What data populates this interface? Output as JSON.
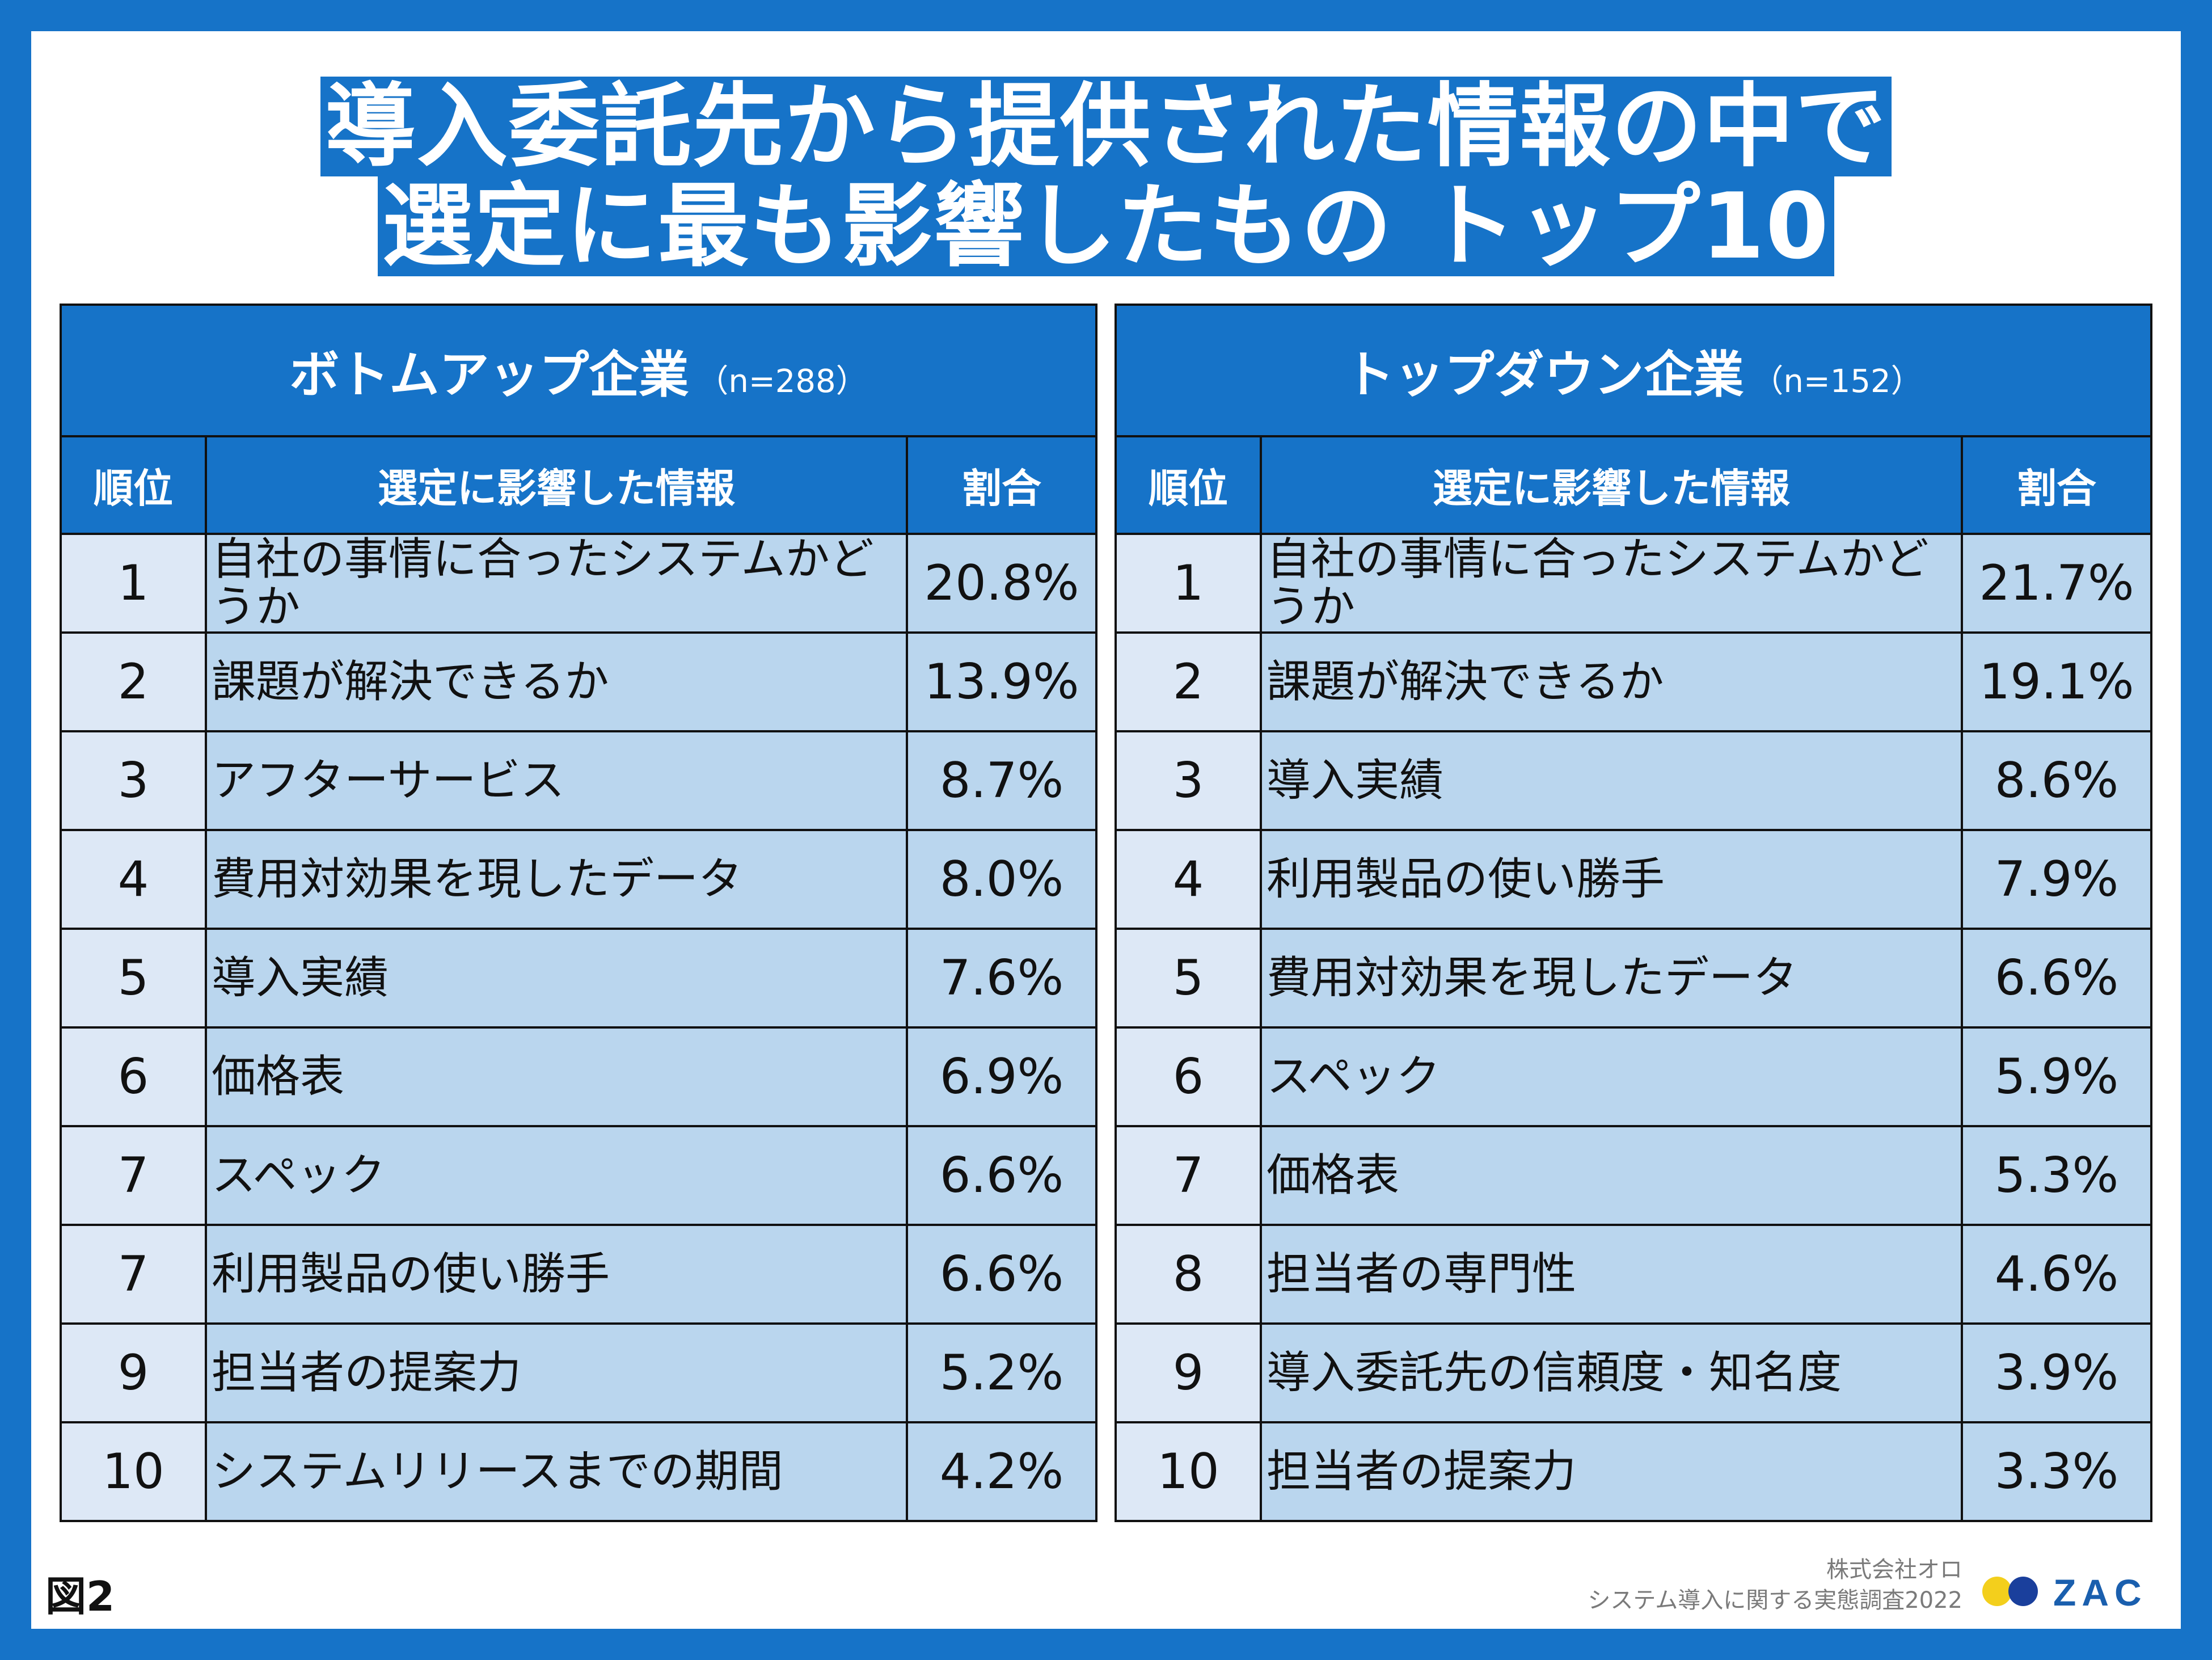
{
  "title": {
    "line1": "導入委託先から提供された情報の中で",
    "line2": "選定に最も影響したもの トップ10"
  },
  "colors": {
    "frame": "#1673c8",
    "header_bg": "#1673c8",
    "rank_bg": "#dde8f6",
    "cell_bg": "#bad6ee",
    "logo_yellow": "#f3cf1c",
    "logo_navy": "#1a3f9c"
  },
  "chart_data": [
    {
      "type": "table",
      "group": "ボトムアップ企業",
      "n_label": "（n=288）",
      "columns": [
        "順位",
        "選定に影響した情報",
        "割合"
      ],
      "rows": [
        {
          "rank": "1",
          "info": "自社の事情に合ったシステムかどうか",
          "pct": "20.8%"
        },
        {
          "rank": "2",
          "info": "課題が解決できるか",
          "pct": "13.9%"
        },
        {
          "rank": "3",
          "info": "アフターサービス",
          "pct": "8.7%"
        },
        {
          "rank": "4",
          "info": "費用対効果を現したデータ",
          "pct": "8.0%"
        },
        {
          "rank": "5",
          "info": "導入実績",
          "pct": "7.6%"
        },
        {
          "rank": "6",
          "info": "価格表",
          "pct": "6.9%"
        },
        {
          "rank": "7",
          "info": "スペック",
          "pct": "6.6%"
        },
        {
          "rank": "7",
          "info": "利用製品の使い勝手",
          "pct": "6.6%"
        },
        {
          "rank": "9",
          "info": "担当者の提案力",
          "pct": "5.2%"
        },
        {
          "rank": "10",
          "info": "システムリリースまでの期間",
          "pct": "4.2%"
        }
      ]
    },
    {
      "type": "table",
      "group": "トップダウン企業",
      "n_label": "（n=152）",
      "columns": [
        "順位",
        "選定に影響した情報",
        "割合"
      ],
      "rows": [
        {
          "rank": "1",
          "info": "自社の事情に合ったシステムかどうか",
          "pct": "21.7%"
        },
        {
          "rank": "2",
          "info": "課題が解決できるか",
          "pct": "19.1%"
        },
        {
          "rank": "3",
          "info": "導入実績",
          "pct": "8.6%"
        },
        {
          "rank": "4",
          "info": "利用製品の使い勝手",
          "pct": "7.9%"
        },
        {
          "rank": "5",
          "info": "費用対効果を現したデータ",
          "pct": "6.6%"
        },
        {
          "rank": "6",
          "info": "スペック",
          "pct": "5.9%"
        },
        {
          "rank": "7",
          "info": "価格表",
          "pct": "5.3%"
        },
        {
          "rank": "8",
          "info": "担当者の専門性",
          "pct": "4.6%"
        },
        {
          "rank": "9",
          "info": "導入委託先の信頼度・知名度",
          "pct": "3.9%"
        },
        {
          "rank": "10",
          "info": "担当者の提案力",
          "pct": "3.3%"
        }
      ]
    }
  ],
  "footer": {
    "figure_label": "図2",
    "company": "株式会社オロ",
    "survey": "システム導入に関する実態調査2022",
    "logo_text": "ZAC"
  }
}
